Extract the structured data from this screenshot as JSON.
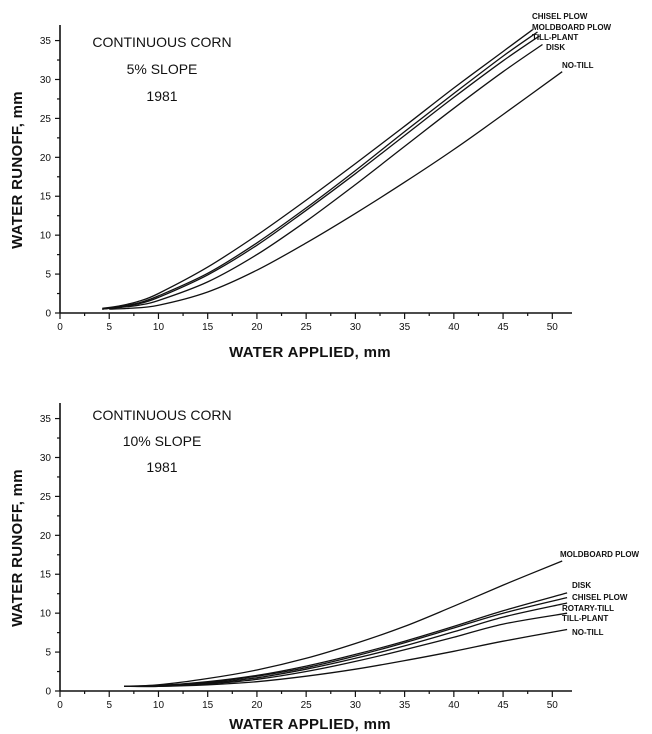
{
  "chart_data": [
    {
      "type": "line",
      "annotation": [
        "CONTINUOUS CORN",
        "5% SLOPE",
        "1981"
      ],
      "xlabel": "WATER APPLIED, mm",
      "ylabel": "WATER RUNOFF, mm",
      "xlim": [
        0,
        52
      ],
      "ylim": [
        0,
        37
      ],
      "xticks": [
        0,
        5,
        10,
        15,
        20,
        25,
        30,
        35,
        40,
        45,
        50
      ],
      "yticks": [
        0,
        5,
        10,
        15,
        20,
        25,
        30,
        35
      ],
      "grid": false,
      "series": [
        {
          "name": "CHISEL PLOW",
          "x": [
            4.3,
            6,
            8,
            10,
            15,
            20,
            25,
            30,
            35,
            40,
            45,
            48
          ],
          "y": [
            0.6,
            0.9,
            1.5,
            2.5,
            5.9,
            10.0,
            14.5,
            19.2,
            24.0,
            28.9,
            33.6,
            36.4
          ]
        },
        {
          "name": "MOLDBOARD PLOW",
          "x": [
            4.3,
            6,
            8,
            10,
            15,
            20,
            25,
            30,
            35,
            40,
            45,
            48.5
          ],
          "y": [
            0.5,
            0.8,
            1.3,
            2.2,
            5.1,
            9.0,
            13.5,
            18.3,
            23.3,
            28.2,
            33.0,
            36.1
          ]
        },
        {
          "name": "TILL-PLANT",
          "x": [
            4.3,
            6,
            8,
            10,
            15,
            20,
            25,
            30,
            35,
            40,
            45,
            48.7
          ],
          "y": [
            0.5,
            0.8,
            1.2,
            2.0,
            4.9,
            8.7,
            13.2,
            17.9,
            22.8,
            27.7,
            32.4,
            35.6
          ]
        },
        {
          "name": "DISK",
          "x": [
            4.3,
            6,
            8,
            10,
            15,
            20,
            25,
            30,
            35,
            40,
            45,
            49
          ],
          "y": [
            0.5,
            0.7,
            1.0,
            1.6,
            4.0,
            7.5,
            11.8,
            16.5,
            21.4,
            26.3,
            31.0,
            34.5
          ]
        },
        {
          "name": "NO-TILL",
          "x": [
            5,
            7,
            10,
            15,
            20,
            25,
            30,
            35,
            40,
            45,
            51
          ],
          "y": [
            0.5,
            0.6,
            1.0,
            2.7,
            5.5,
            9.0,
            12.8,
            16.8,
            21.0,
            25.5,
            31.0
          ]
        }
      ]
    },
    {
      "type": "line",
      "annotation": [
        "CONTINUOUS CORN",
        "10% SLOPE",
        "1981"
      ],
      "xlabel": "WATER APPLIED, mm",
      "ylabel": "WATER RUNOFF, mm",
      "xlim": [
        0,
        52
      ],
      "ylim": [
        0,
        37
      ],
      "xticks": [
        0,
        5,
        10,
        15,
        20,
        25,
        30,
        35,
        40,
        45,
        50
      ],
      "yticks": [
        0,
        5,
        10,
        15,
        20,
        25,
        30,
        35
      ],
      "grid": false,
      "series": [
        {
          "name": "MOLDBOARD PLOW",
          "x": [
            6.5,
            10,
            15,
            20,
            25,
            30,
            35,
            40,
            45,
            51
          ],
          "y": [
            0.6,
            0.8,
            1.6,
            2.7,
            4.2,
            6.1,
            8.3,
            10.9,
            13.6,
            16.7
          ]
        },
        {
          "name": "DISK",
          "x": [
            6.5,
            10,
            15,
            20,
            25,
            30,
            35,
            40,
            45,
            51.5
          ],
          "y": [
            0.6,
            0.7,
            1.2,
            2.0,
            3.2,
            4.7,
            6.4,
            8.3,
            10.3,
            12.6
          ]
        },
        {
          "name": "CHISEL PLOW",
          "x": [
            6.5,
            10,
            15,
            20,
            25,
            30,
            35,
            40,
            45,
            51.5
          ],
          "y": [
            0.6,
            0.7,
            1.1,
            1.9,
            3.0,
            4.5,
            6.2,
            8.1,
            10.0,
            12.0
          ]
        },
        {
          "name": "ROTARY-TILL",
          "x": [
            6.5,
            10,
            15,
            20,
            25,
            30,
            35,
            40,
            45,
            51.5
          ],
          "y": [
            0.6,
            0.7,
            1.0,
            1.7,
            2.8,
            4.2,
            5.8,
            7.6,
            9.5,
            11.3
          ]
        },
        {
          "name": "TILL-PLANT",
          "x": [
            6.5,
            10,
            15,
            20,
            25,
            30,
            35,
            40,
            45,
            51.5
          ],
          "y": [
            0.6,
            0.6,
            0.9,
            1.5,
            2.5,
            3.8,
            5.3,
            6.9,
            8.6,
            10.0
          ]
        },
        {
          "name": "NO-TILL",
          "x": [
            7,
            10,
            15,
            20,
            25,
            30,
            35,
            40,
            45,
            51.5
          ],
          "y": [
            0.6,
            0.6,
            0.8,
            1.2,
            1.9,
            2.8,
            3.9,
            5.1,
            6.4,
            7.9
          ]
        }
      ]
    }
  ]
}
